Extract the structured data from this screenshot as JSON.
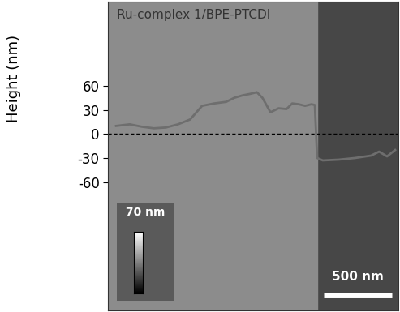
{
  "chart_data": {
    "type": "line",
    "title": "Ru-complex 1/BPE-PTCDI",
    "y_label": "Height (nm)",
    "x": [
      59,
      159,
      247,
      335,
      423,
      512,
      600,
      688,
      776,
      864,
      923,
      982,
      1041,
      1088,
      1129,
      1188,
      1247,
      1305,
      1347,
      1394,
      1441,
      1488,
      1512,
      1529,
      1570,
      1688,
      1805,
      1923,
      1982,
      2040,
      2099
    ],
    "values": [
      10,
      12,
      9,
      7,
      8,
      12,
      18,
      35,
      38,
      40,
      45,
      48,
      50,
      52,
      45,
      27,
      32,
      31,
      38,
      37,
      35,
      37,
      36,
      -30,
      -33,
      -32,
      -30,
      -27,
      -22,
      -28,
      -20
    ],
    "color": "#6e6e6e",
    "line_style": "solid",
    "xlim": [
      0,
      2120
    ],
    "ylim": [
      -220,
      165
    ],
    "yticks": [
      60,
      30,
      0,
      -30,
      -60
    ],
    "tick_labels": "y",
    "reference_line": 0,
    "colorbar": {
      "label": "70 nm",
      "range": [
        0,
        70
      ]
    },
    "scale_bar": {
      "label": "500 nm",
      "length": 500
    }
  }
}
